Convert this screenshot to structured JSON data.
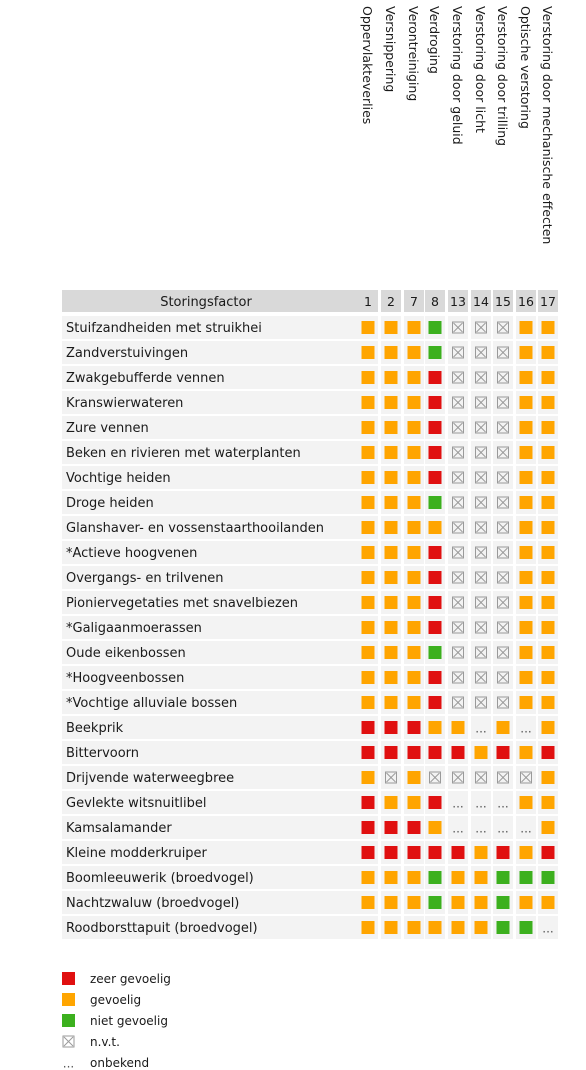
{
  "chart_data": {
    "type": "heatmap",
    "title": "",
    "header_label": "Storingsfactor",
    "columns": [
      {
        "num": "1",
        "label": "Oppervlakteverlies"
      },
      {
        "num": "2",
        "label": "Versnippering"
      },
      {
        "num": "7",
        "label": "Verontreiniging"
      },
      {
        "num": "8",
        "label": "Verdroging"
      },
      {
        "num": "13",
        "label": "Verstoring door geluid"
      },
      {
        "num": "14",
        "label": "Verstoring door licht"
      },
      {
        "num": "15",
        "label": "Verstoring door trilling"
      },
      {
        "num": "16",
        "label": "Optische verstoring"
      },
      {
        "num": "17",
        "label": "Verstoring door mechanische effecten"
      }
    ],
    "rows": [
      {
        "name": "Stuifzandheiden met struikhei",
        "v": [
          "G",
          "G",
          "G",
          "N",
          "X",
          "X",
          "X",
          "G",
          "G"
        ]
      },
      {
        "name": "Zandverstuivingen",
        "v": [
          "G",
          "G",
          "G",
          "N",
          "X",
          "X",
          "X",
          "G",
          "G"
        ]
      },
      {
        "name": "Zwakgebufferde vennen",
        "v": [
          "G",
          "G",
          "G",
          "Z",
          "X",
          "X",
          "X",
          "G",
          "G"
        ]
      },
      {
        "name": "Kranswierwateren",
        "v": [
          "G",
          "G",
          "G",
          "Z",
          "X",
          "X",
          "X",
          "G",
          "G"
        ]
      },
      {
        "name": "Zure vennen",
        "v": [
          "G",
          "G",
          "G",
          "Z",
          "X",
          "X",
          "X",
          "G",
          "G"
        ]
      },
      {
        "name": "Beken en rivieren met waterplanten",
        "v": [
          "G",
          "G",
          "G",
          "Z",
          "X",
          "X",
          "X",
          "G",
          "G"
        ]
      },
      {
        "name": "Vochtige heiden",
        "v": [
          "G",
          "G",
          "G",
          "Z",
          "X",
          "X",
          "X",
          "G",
          "G"
        ]
      },
      {
        "name": "Droge heiden",
        "v": [
          "G",
          "G",
          "G",
          "N",
          "X",
          "X",
          "X",
          "G",
          "G"
        ]
      },
      {
        "name": "Glanshaver- en vossenstaarthooilanden",
        "v": [
          "G",
          "G",
          "G",
          "G",
          "X",
          "X",
          "X",
          "G",
          "G"
        ]
      },
      {
        "name": "*Actieve hoogvenen",
        "v": [
          "G",
          "G",
          "G",
          "Z",
          "X",
          "X",
          "X",
          "G",
          "G"
        ]
      },
      {
        "name": "Overgangs- en trilvenen",
        "v": [
          "G",
          "G",
          "G",
          "Z",
          "X",
          "X",
          "X",
          "G",
          "G"
        ]
      },
      {
        "name": "Pioniervegetaties met snavelbiezen",
        "v": [
          "G",
          "G",
          "G",
          "Z",
          "X",
          "X",
          "X",
          "G",
          "G"
        ]
      },
      {
        "name": "*Galigaanmoerassen",
        "v": [
          "G",
          "G",
          "G",
          "Z",
          "X",
          "X",
          "X",
          "G",
          "G"
        ]
      },
      {
        "name": "Oude eikenbossen",
        "v": [
          "G",
          "G",
          "G",
          "N",
          "X",
          "X",
          "X",
          "G",
          "G"
        ]
      },
      {
        "name": "*Hoogveenbossen",
        "v": [
          "G",
          "G",
          "G",
          "Z",
          "X",
          "X",
          "X",
          "G",
          "G"
        ]
      },
      {
        "name": "*Vochtige alluviale bossen",
        "v": [
          "G",
          "G",
          "G",
          "Z",
          "X",
          "X",
          "X",
          "G",
          "G"
        ]
      },
      {
        "name": "Beekprik",
        "v": [
          "Z",
          "Z",
          "Z",
          "G",
          "G",
          "U",
          "G",
          "U",
          "G"
        ]
      },
      {
        "name": "Bittervoorn",
        "v": [
          "Z",
          "Z",
          "Z",
          "Z",
          "Z",
          "G",
          "Z",
          "G",
          "Z"
        ]
      },
      {
        "name": "Drijvende waterweegbree",
        "v": [
          "G",
          "X",
          "G",
          "X",
          "X",
          "X",
          "X",
          "X",
          "G"
        ]
      },
      {
        "name": "Gevlekte witsnuitlibel",
        "v": [
          "Z",
          "G",
          "G",
          "Z",
          "U",
          "U",
          "U",
          "G",
          "G"
        ]
      },
      {
        "name": "Kamsalamander",
        "v": [
          "Z",
          "Z",
          "Z",
          "G",
          "U",
          "U",
          "U",
          "U",
          "G"
        ]
      },
      {
        "name": "Kleine modderkruiper",
        "v": [
          "Z",
          "Z",
          "Z",
          "Z",
          "Z",
          "G",
          "Z",
          "G",
          "Z"
        ]
      },
      {
        "name": "Boomleeuwerik (broedvogel)",
        "v": [
          "G",
          "G",
          "G",
          "N",
          "G",
          "G",
          "N",
          "N",
          "N"
        ]
      },
      {
        "name": "Nachtzwaluw (broedvogel)",
        "v": [
          "G",
          "G",
          "G",
          "N",
          "G",
          "G",
          "N",
          "G",
          "G"
        ]
      },
      {
        "name": "Roodborsttapuit (broedvogel)",
        "v": [
          "G",
          "G",
          "G",
          "G",
          "G",
          "G",
          "N",
          "N",
          "U"
        ]
      }
    ],
    "legend": [
      {
        "key": "Z",
        "label": "zeer gevoelig"
      },
      {
        "key": "G",
        "label": "gevoelig"
      },
      {
        "key": "N",
        "label": "niet gevoelig"
      },
      {
        "key": "X",
        "label": "n.v.t."
      },
      {
        "key": "U",
        "label": "onbekend"
      }
    ],
    "colors": {
      "Z": "#e01010",
      "G": "#ffa500",
      "N": "#3cb01e",
      "header_bg": "#d9d9d9",
      "row_bg": "#f3f3f3",
      "na_stroke": "#9a9a9a"
    }
  }
}
